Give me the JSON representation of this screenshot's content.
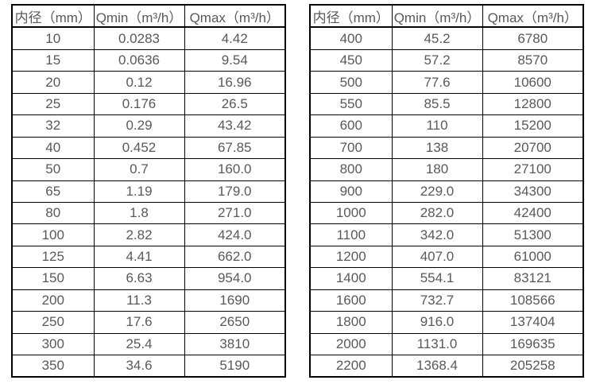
{
  "page": {
    "background_color": "#ffffff",
    "border_color": "#000000",
    "text_color": "#595959"
  },
  "tables": [
    {
      "title": "flow-spec-small-diameters",
      "headers": [
        "内径（mm）",
        "Qmin（m³/h）",
        "Qmax（m³/h）"
      ],
      "rows": [
        [
          "10",
          "0.0283",
          "4.42"
        ],
        [
          "15",
          "0.0636",
          "9.54"
        ],
        [
          "20",
          "0.12",
          "16.96"
        ],
        [
          "25",
          "0.176",
          "26.5"
        ],
        [
          "32",
          "0.29",
          "43.42"
        ],
        [
          "40",
          "0.452",
          "67.85"
        ],
        [
          "50",
          "0.7",
          "160.0"
        ],
        [
          "65",
          "1.19",
          "179.0"
        ],
        [
          "80",
          "1.8",
          "271.0"
        ],
        [
          "100",
          "2.82",
          "424.0"
        ],
        [
          "125",
          "4.41",
          "662.0"
        ],
        [
          "150",
          "6.63",
          "954.0"
        ],
        [
          "200",
          "11.3",
          "1690"
        ],
        [
          "250",
          "17.6",
          "2650"
        ],
        [
          "300",
          "25.4",
          "3810"
        ],
        [
          "350",
          "34.6",
          "5190"
        ]
      ]
    },
    {
      "title": "flow-spec-large-diameters",
      "headers": [
        "内径（mm）",
        "Qmin（m³/h）",
        "Qmax（m³/h）"
      ],
      "rows": [
        [
          "400",
          "45.2",
          "6780"
        ],
        [
          "450",
          "57.2",
          "8570"
        ],
        [
          "500",
          "77.6",
          "10600"
        ],
        [
          "550",
          "85.5",
          "12800"
        ],
        [
          "600",
          "110",
          "15200"
        ],
        [
          "700",
          "138",
          "20700"
        ],
        [
          "800",
          "180",
          "27100"
        ],
        [
          "900",
          "229.0",
          "34300"
        ],
        [
          "1000",
          "282.0",
          "42400"
        ],
        [
          "1100",
          "342.0",
          "51300"
        ],
        [
          "1200",
          "407.0",
          "61000"
        ],
        [
          "1400",
          "554.1",
          "83121"
        ],
        [
          "1600",
          "732.7",
          "108566"
        ],
        [
          "1800",
          "916.0",
          "137404"
        ],
        [
          "2000",
          "1131.0",
          "169635"
        ],
        [
          "2200",
          "1368.4",
          "205258"
        ]
      ]
    }
  ]
}
